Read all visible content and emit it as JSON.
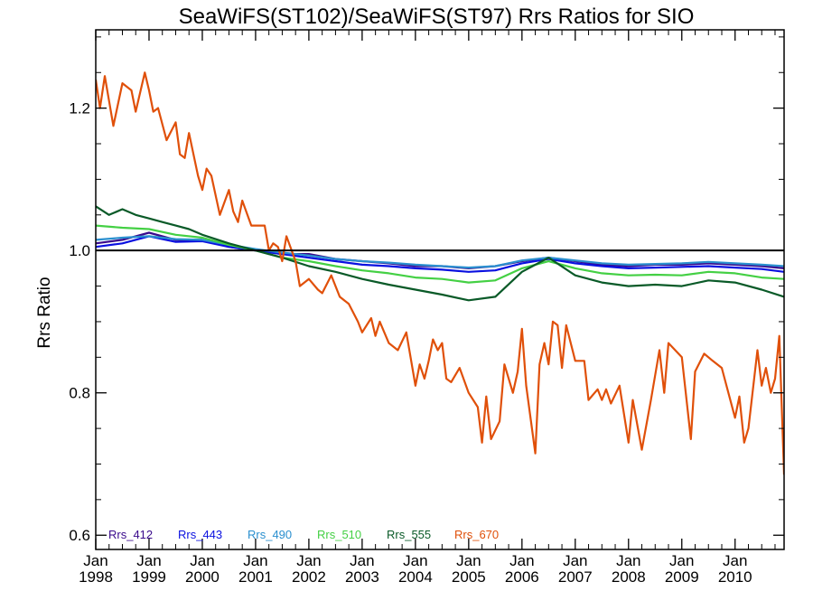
{
  "chart_data": {
    "type": "line",
    "title": "SeaWiFS(ST102)/SeaWiFS(ST97)  Rrs Ratios for SIO",
    "xlabel": "",
    "ylabel": "Rrs Ratio",
    "xlim": [
      1998.0,
      2010.92
    ],
    "ylim": [
      0.58,
      1.31
    ],
    "yticks": [
      0.6,
      0.8,
      1.0,
      1.2
    ],
    "ytick_labels": [
      "0.6",
      "0.8",
      "1.0",
      "1.2"
    ],
    "xticks": [
      {
        "value": 1998,
        "label": [
          "Jan",
          "1998"
        ]
      },
      {
        "value": 1999,
        "label": [
          "Jan",
          "1999"
        ]
      },
      {
        "value": 2000,
        "label": [
          "Jan",
          "2000"
        ]
      },
      {
        "value": 2001,
        "label": [
          "Jan",
          "2001"
        ]
      },
      {
        "value": 2002,
        "label": [
          "Jan",
          "2002"
        ]
      },
      {
        "value": 2003,
        "label": [
          "Jan",
          "2003"
        ]
      },
      {
        "value": 2004,
        "label": [
          "Jan",
          "2004"
        ]
      },
      {
        "value": 2005,
        "label": [
          "Jan",
          "2005"
        ]
      },
      {
        "value": 2006,
        "label": [
          "Jan",
          "2006"
        ]
      },
      {
        "value": 2007,
        "label": [
          "Jan",
          "2007"
        ]
      },
      {
        "value": 2008,
        "label": [
          "Jan",
          "2008"
        ]
      },
      {
        "value": 2009,
        "label": [
          "Jan",
          "2009"
        ]
      },
      {
        "value": 2010,
        "label": [
          "Jan",
          "2010"
        ]
      }
    ],
    "reference_line": 1.0,
    "grid": false,
    "legend_position": "bottom-left",
    "series": [
      {
        "name": "Rrs_412",
        "color": "#3a0a8c",
        "values": [
          [
            1998.0,
            1.01
          ],
          [
            1998.5,
            1.015
          ],
          [
            1999.0,
            1.025
          ],
          [
            1999.5,
            1.015
          ],
          [
            2000.0,
            1.015
          ],
          [
            2000.5,
            1.005
          ],
          [
            2001.0,
            1.0
          ],
          [
            2001.5,
            0.995
          ],
          [
            2002.0,
            0.995
          ],
          [
            2002.5,
            0.988
          ],
          [
            2003.0,
            0.985
          ],
          [
            2003.5,
            0.982
          ],
          [
            2004.0,
            0.978
          ],
          [
            2004.5,
            0.978
          ],
          [
            2005.0,
            0.975
          ],
          [
            2005.5,
            0.978
          ],
          [
            2006.0,
            0.985
          ],
          [
            2006.5,
            0.99
          ],
          [
            2007.0,
            0.985
          ],
          [
            2007.5,
            0.98
          ],
          [
            2008.0,
            0.978
          ],
          [
            2008.5,
            0.98
          ],
          [
            2009.0,
            0.98
          ],
          [
            2009.5,
            0.982
          ],
          [
            2010.0,
            0.98
          ],
          [
            2010.5,
            0.978
          ],
          [
            2010.92,
            0.975
          ]
        ]
      },
      {
        "name": "Rrs_443",
        "color": "#0a10e0",
        "values": [
          [
            1998.0,
            1.005
          ],
          [
            1998.5,
            1.01
          ],
          [
            1999.0,
            1.02
          ],
          [
            1999.5,
            1.012
          ],
          [
            2000.0,
            1.013
          ],
          [
            2000.5,
            1.005
          ],
          [
            2001.0,
            1.0
          ],
          [
            2001.5,
            0.995
          ],
          [
            2002.0,
            0.99
          ],
          [
            2002.5,
            0.985
          ],
          [
            2003.0,
            0.98
          ],
          [
            2003.5,
            0.978
          ],
          [
            2004.0,
            0.975
          ],
          [
            2004.5,
            0.973
          ],
          [
            2005.0,
            0.97
          ],
          [
            2005.5,
            0.972
          ],
          [
            2006.0,
            0.982
          ],
          [
            2006.5,
            0.988
          ],
          [
            2007.0,
            0.982
          ],
          [
            2007.5,
            0.978
          ],
          [
            2008.0,
            0.975
          ],
          [
            2008.5,
            0.976
          ],
          [
            2009.0,
            0.977
          ],
          [
            2009.5,
            0.978
          ],
          [
            2010.0,
            0.976
          ],
          [
            2010.5,
            0.974
          ],
          [
            2010.92,
            0.97
          ]
        ]
      },
      {
        "name": "Rrs_490",
        "color": "#2a8fcf",
        "values": [
          [
            1998.0,
            1.015
          ],
          [
            1998.5,
            1.018
          ],
          [
            1999.0,
            1.02
          ],
          [
            1999.5,
            1.016
          ],
          [
            2000.0,
            1.015
          ],
          [
            2000.5,
            1.008
          ],
          [
            2001.0,
            1.002
          ],
          [
            2001.5,
            0.997
          ],
          [
            2002.0,
            0.993
          ],
          [
            2002.5,
            0.988
          ],
          [
            2003.0,
            0.985
          ],
          [
            2003.5,
            0.983
          ],
          [
            2004.0,
            0.98
          ],
          [
            2004.5,
            0.978
          ],
          [
            2005.0,
            0.976
          ],
          [
            2005.5,
            0.978
          ],
          [
            2006.0,
            0.986
          ],
          [
            2006.5,
            0.99
          ],
          [
            2007.0,
            0.986
          ],
          [
            2007.5,
            0.982
          ],
          [
            2008.0,
            0.98
          ],
          [
            2008.5,
            0.981
          ],
          [
            2009.0,
            0.982
          ],
          [
            2009.5,
            0.984
          ],
          [
            2010.0,
            0.982
          ],
          [
            2010.5,
            0.98
          ],
          [
            2010.92,
            0.978
          ]
        ]
      },
      {
        "name": "Rrs_510",
        "color": "#44d044",
        "values": [
          [
            1998.0,
            1.035
          ],
          [
            1998.5,
            1.032
          ],
          [
            1999.0,
            1.03
          ],
          [
            1999.5,
            1.022
          ],
          [
            2000.0,
            1.018
          ],
          [
            2000.5,
            1.008
          ],
          [
            2001.0,
            1.0
          ],
          [
            2001.5,
            0.99
          ],
          [
            2002.0,
            0.985
          ],
          [
            2002.5,
            0.978
          ],
          [
            2003.0,
            0.972
          ],
          [
            2003.5,
            0.968
          ],
          [
            2004.0,
            0.962
          ],
          [
            2004.5,
            0.96
          ],
          [
            2005.0,
            0.955
          ],
          [
            2005.5,
            0.958
          ],
          [
            2006.0,
            0.975
          ],
          [
            2006.5,
            0.985
          ],
          [
            2007.0,
            0.975
          ],
          [
            2007.5,
            0.968
          ],
          [
            2008.0,
            0.965
          ],
          [
            2008.5,
            0.966
          ],
          [
            2009.0,
            0.965
          ],
          [
            2009.5,
            0.97
          ],
          [
            2010.0,
            0.968
          ],
          [
            2010.5,
            0.962
          ],
          [
            2010.92,
            0.96
          ]
        ]
      },
      {
        "name": "Rrs_555",
        "color": "#0a5a28",
        "values": [
          [
            1998.0,
            1.062
          ],
          [
            1998.25,
            1.05
          ],
          [
            1998.5,
            1.058
          ],
          [
            1998.75,
            1.05
          ],
          [
            1999.0,
            1.045
          ],
          [
            1999.25,
            1.04
          ],
          [
            1999.5,
            1.035
          ],
          [
            1999.75,
            1.03
          ],
          [
            2000.0,
            1.022
          ],
          [
            2000.5,
            1.01
          ],
          [
            2001.0,
            1.0
          ],
          [
            2001.5,
            0.99
          ],
          [
            2002.0,
            0.978
          ],
          [
            2002.5,
            0.97
          ],
          [
            2003.0,
            0.96
          ],
          [
            2003.5,
            0.952
          ],
          [
            2004.0,
            0.945
          ],
          [
            2004.5,
            0.938
          ],
          [
            2005.0,
            0.93
          ],
          [
            2005.5,
            0.935
          ],
          [
            2006.0,
            0.97
          ],
          [
            2006.5,
            0.99
          ],
          [
            2007.0,
            0.965
          ],
          [
            2007.5,
            0.955
          ],
          [
            2008.0,
            0.95
          ],
          [
            2008.5,
            0.952
          ],
          [
            2009.0,
            0.95
          ],
          [
            2009.5,
            0.958
          ],
          [
            2010.0,
            0.955
          ],
          [
            2010.5,
            0.945
          ],
          [
            2010.92,
            0.935
          ]
        ]
      },
      {
        "name": "Rrs_670",
        "color": "#e0500a",
        "values": [
          [
            1998.0,
            1.24
          ],
          [
            1998.08,
            1.2
          ],
          [
            1998.17,
            1.245
          ],
          [
            1998.33,
            1.175
          ],
          [
            1998.5,
            1.235
          ],
          [
            1998.67,
            1.225
          ],
          [
            1998.75,
            1.195
          ],
          [
            1998.92,
            1.25
          ],
          [
            1999.0,
            1.225
          ],
          [
            1999.08,
            1.195
          ],
          [
            1999.17,
            1.2
          ],
          [
            1999.33,
            1.155
          ],
          [
            1999.5,
            1.18
          ],
          [
            1999.58,
            1.135
          ],
          [
            1999.67,
            1.13
          ],
          [
            1999.75,
            1.165
          ],
          [
            1999.92,
            1.105
          ],
          [
            2000.0,
            1.085
          ],
          [
            2000.08,
            1.115
          ],
          [
            2000.17,
            1.105
          ],
          [
            2000.33,
            1.05
          ],
          [
            2000.5,
            1.085
          ],
          [
            2000.58,
            1.055
          ],
          [
            2000.67,
            1.04
          ],
          [
            2000.75,
            1.07
          ],
          [
            2000.92,
            1.035
          ],
          [
            2001.0,
            1.035
          ],
          [
            2001.17,
            1.035
          ],
          [
            2001.25,
            1.0
          ],
          [
            2001.33,
            1.01
          ],
          [
            2001.42,
            1.005
          ],
          [
            2001.5,
            0.985
          ],
          [
            2001.58,
            1.02
          ],
          [
            2001.75,
            0.985
          ],
          [
            2001.83,
            0.95
          ],
          [
            2002.0,
            0.96
          ],
          [
            2002.17,
            0.945
          ],
          [
            2002.25,
            0.94
          ],
          [
            2002.42,
            0.965
          ],
          [
            2002.58,
            0.935
          ],
          [
            2002.75,
            0.925
          ],
          [
            2002.92,
            0.9
          ],
          [
            2003.0,
            0.885
          ],
          [
            2003.17,
            0.905
          ],
          [
            2003.25,
            0.88
          ],
          [
            2003.33,
            0.9
          ],
          [
            2003.5,
            0.87
          ],
          [
            2003.67,
            0.86
          ],
          [
            2003.83,
            0.885
          ],
          [
            2004.0,
            0.81
          ],
          [
            2004.08,
            0.84
          ],
          [
            2004.17,
            0.82
          ],
          [
            2004.25,
            0.845
          ],
          [
            2004.33,
            0.875
          ],
          [
            2004.42,
            0.86
          ],
          [
            2004.5,
            0.87
          ],
          [
            2004.58,
            0.82
          ],
          [
            2004.67,
            0.815
          ],
          [
            2004.83,
            0.835
          ],
          [
            2005.0,
            0.8
          ],
          [
            2005.17,
            0.78
          ],
          [
            2005.25,
            0.73
          ],
          [
            2005.33,
            0.795
          ],
          [
            2005.42,
            0.735
          ],
          [
            2005.58,
            0.76
          ],
          [
            2005.67,
            0.84
          ],
          [
            2005.83,
            0.8
          ],
          [
            2005.92,
            0.83
          ],
          [
            2006.0,
            0.89
          ],
          [
            2006.08,
            0.81
          ],
          [
            2006.25,
            0.715
          ],
          [
            2006.33,
            0.84
          ],
          [
            2006.42,
            0.87
          ],
          [
            2006.5,
            0.84
          ],
          [
            2006.58,
            0.9
          ],
          [
            2006.67,
            0.895
          ],
          [
            2006.75,
            0.835
          ],
          [
            2006.83,
            0.895
          ],
          [
            2007.0,
            0.845
          ],
          [
            2007.17,
            0.845
          ],
          [
            2007.25,
            0.79
          ],
          [
            2007.42,
            0.805
          ],
          [
            2007.5,
            0.79
          ],
          [
            2007.58,
            0.805
          ],
          [
            2007.67,
            0.785
          ],
          [
            2007.83,
            0.81
          ],
          [
            2008.0,
            0.73
          ],
          [
            2008.08,
            0.79
          ],
          [
            2008.25,
            0.72
          ],
          [
            2008.42,
            0.79
          ],
          [
            2008.58,
            0.86
          ],
          [
            2008.67,
            0.8
          ],
          [
            2008.75,
            0.87
          ],
          [
            2009.0,
            0.85
          ],
          [
            2009.17,
            0.735
          ],
          [
            2009.25,
            0.83
          ],
          [
            2009.42,
            0.855
          ],
          [
            2009.58,
            0.845
          ],
          [
            2009.75,
            0.835
          ],
          [
            2010.0,
            0.765
          ],
          [
            2010.08,
            0.795
          ],
          [
            2010.17,
            0.73
          ],
          [
            2010.25,
            0.75
          ],
          [
            2010.42,
            0.86
          ],
          [
            2010.5,
            0.81
          ],
          [
            2010.58,
            0.835
          ],
          [
            2010.67,
            0.8
          ],
          [
            2010.75,
            0.82
          ],
          [
            2010.83,
            0.88
          ],
          [
            2010.92,
            0.685
          ]
        ]
      }
    ]
  }
}
